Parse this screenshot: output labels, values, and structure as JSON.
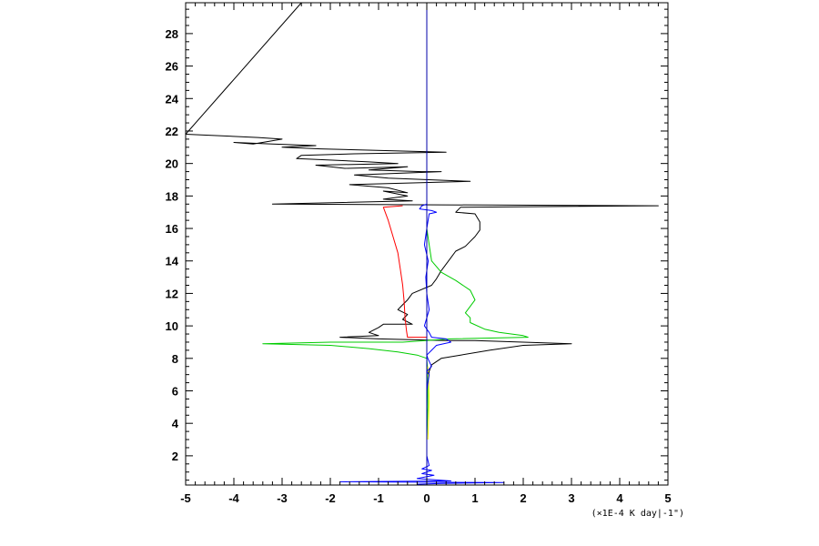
{
  "chart_data": {
    "type": "line",
    "title": "",
    "xlabel": "(×1E-4 K day|-1\")",
    "ylabel": "",
    "xlim": [
      -5,
      5
    ],
    "ylim": [
      0.2,
      29.9
    ],
    "x_ticks": [
      "-5",
      "-4",
      "-3",
      "-2",
      "-1",
      "0",
      "1",
      "2",
      "3",
      "4",
      "5"
    ],
    "y_ticks": [
      "2",
      "4",
      "6",
      "8",
      "10",
      "12",
      "14",
      "16",
      "18",
      "20",
      "22",
      "24",
      "26",
      "28"
    ],
    "grid": false,
    "legend": "none",
    "series": [
      {
        "color": "#000000",
        "points": [
          [
            -5.0,
            29.9
          ],
          [
            -2.6,
            29.9
          ],
          [
            -5.0,
            21.8
          ],
          [
            -3.5,
            21.6
          ],
          [
            -3.0,
            21.5
          ],
          [
            -3.6,
            21.2
          ],
          [
            -4.0,
            21.3
          ],
          [
            -3.2,
            21.2
          ],
          [
            -2.3,
            21.1
          ],
          [
            -3.0,
            21.0
          ],
          [
            -2.2,
            20.9
          ],
          [
            0.4,
            20.7
          ],
          [
            -1.5,
            20.6
          ],
          [
            -2.6,
            20.5
          ],
          [
            -2.7,
            20.3
          ],
          [
            -1.9,
            20.2
          ],
          [
            -1.2,
            20.1
          ],
          [
            -0.6,
            20.0
          ],
          [
            -2.3,
            19.9
          ],
          [
            -1.7,
            19.7
          ],
          [
            -0.4,
            19.8
          ],
          [
            -1.2,
            19.6
          ],
          [
            -0.1,
            19.5
          ],
          [
            0.3,
            19.5
          ],
          [
            -1.5,
            19.3
          ],
          [
            -0.8,
            19.1
          ],
          [
            0.9,
            18.9
          ],
          [
            -1.6,
            18.7
          ],
          [
            -0.8,
            18.5
          ],
          [
            -0.4,
            18.2
          ],
          [
            -0.9,
            18.3
          ],
          [
            -0.4,
            18.0
          ],
          [
            -0.9,
            17.8
          ],
          [
            -0.3,
            17.7
          ],
          [
            -3.2,
            17.5
          ],
          [
            4.8,
            17.4
          ],
          [
            0.7,
            17.3
          ],
          [
            0.6,
            17.0
          ],
          [
            1.0,
            16.9
          ],
          [
            1.1,
            16.4
          ],
          [
            1.1,
            15.9
          ],
          [
            1.0,
            15.5
          ],
          [
            0.9,
            15.2
          ],
          [
            0.8,
            14.9
          ],
          [
            0.6,
            14.6
          ],
          [
            0.5,
            14.2
          ],
          [
            0.4,
            13.8
          ],
          [
            0.3,
            13.4
          ],
          [
            0.2,
            12.9
          ],
          [
            0.1,
            12.5
          ],
          [
            -0.3,
            12.0
          ],
          [
            -0.4,
            11.6
          ],
          [
            -0.5,
            11.3
          ],
          [
            -0.6,
            11.0
          ],
          [
            -0.4,
            10.7
          ],
          [
            -0.5,
            10.4
          ],
          [
            -0.3,
            10.1
          ],
          [
            -0.9,
            10.1
          ],
          [
            -1.0,
            9.9
          ],
          [
            -1.2,
            9.6
          ],
          [
            -1.0,
            9.4
          ],
          [
            -1.8,
            9.3
          ],
          [
            -1.0,
            9.2
          ],
          [
            0.4,
            9.1
          ],
          [
            1.0,
            9.1
          ],
          [
            2.0,
            9.0
          ],
          [
            3.0,
            8.9
          ],
          [
            2.0,
            8.8
          ],
          [
            1.3,
            8.5
          ],
          [
            0.7,
            8.2
          ],
          [
            0.3,
            8.0
          ],
          [
            0.1,
            7.6
          ],
          [
            0.05,
            7.2
          ],
          [
            0.02,
            6.5
          ],
          [
            0.0,
            5.0
          ],
          [
            0.0,
            2.0
          ],
          [
            0.0,
            0.2
          ]
        ]
      },
      {
        "color": "#ff0000",
        "points": [
          [
            -0.5,
            17.4
          ],
          [
            -0.9,
            17.3
          ],
          [
            -0.8,
            16.5
          ],
          [
            -0.7,
            15.5
          ],
          [
            -0.6,
            14.5
          ],
          [
            -0.55,
            13.5
          ],
          [
            -0.5,
            12.5
          ],
          [
            -0.47,
            11.5
          ],
          [
            -0.45,
            10.5
          ],
          [
            -0.42,
            9.7
          ],
          [
            -0.4,
            9.3
          ],
          [
            0.0,
            9.3
          ]
        ]
      },
      {
        "color": "#00cc00",
        "points": [
          [
            0.0,
            16.0
          ],
          [
            0.05,
            15.0
          ],
          [
            0.1,
            14.0
          ],
          [
            0.3,
            13.3
          ],
          [
            0.6,
            12.8
          ],
          [
            0.9,
            12.2
          ],
          [
            1.0,
            11.6
          ],
          [
            0.9,
            11.2
          ],
          [
            0.8,
            10.8
          ],
          [
            0.9,
            10.5
          ],
          [
            0.9,
            10.2
          ],
          [
            1.2,
            9.8
          ],
          [
            1.5,
            9.6
          ],
          [
            2.0,
            9.4
          ],
          [
            2.1,
            9.3
          ],
          [
            0.5,
            9.2
          ],
          [
            -0.5,
            9.0
          ],
          [
            -2.0,
            9.0
          ],
          [
            -3.4,
            8.9
          ],
          [
            -2.0,
            8.8
          ],
          [
            -1.2,
            8.6
          ],
          [
            -0.6,
            8.4
          ],
          [
            -0.2,
            8.2
          ],
          [
            0.0,
            8.0
          ],
          [
            0.02,
            7.0
          ],
          [
            0.02,
            5.0
          ],
          [
            0.0,
            3.0
          ]
        ]
      },
      {
        "color": "#ffff00",
        "points": [
          [
            0.02,
            7.5
          ],
          [
            0.04,
            6.5
          ],
          [
            0.05,
            5.5
          ],
          [
            0.04,
            4.5
          ],
          [
            0.03,
            3.5
          ],
          [
            0.02,
            3.0
          ]
        ]
      },
      {
        "color": "#0000ff",
        "points": [
          [
            0.0,
            17.5
          ],
          [
            -0.1,
            17.4
          ],
          [
            -0.15,
            17.2
          ],
          [
            0.1,
            17.1
          ],
          [
            0.2,
            17.0
          ],
          [
            0.05,
            16.9
          ],
          [
            0.0,
            16.0
          ],
          [
            -0.05,
            15.0
          ],
          [
            0.03,
            14.0
          ],
          [
            -0.02,
            13.0
          ],
          [
            0.0,
            12.0
          ],
          [
            0.05,
            11.0
          ],
          [
            -0.05,
            10.0
          ],
          [
            0.05,
            9.6
          ],
          [
            0.1,
            9.3
          ],
          [
            0.4,
            9.2
          ],
          [
            0.5,
            9.0
          ],
          [
            0.2,
            8.8
          ],
          [
            0.1,
            8.5
          ],
          [
            0.0,
            8.2
          ],
          [
            0.02,
            8.0
          ],
          [
            0.1,
            7.5
          ],
          [
            0.0,
            7.2
          ],
          [
            0.05,
            7.0
          ],
          [
            0.0,
            6.0
          ],
          [
            0.0,
            4.0
          ],
          [
            0.0,
            2.0
          ],
          [
            0.05,
            1.4
          ],
          [
            -0.1,
            1.2
          ],
          [
            0.1,
            1.1
          ],
          [
            -0.1,
            0.9
          ],
          [
            0.15,
            0.8
          ],
          [
            -0.2,
            0.6
          ],
          [
            0.5,
            0.45
          ],
          [
            -1.8,
            0.4
          ],
          [
            1.6,
            0.35
          ],
          [
            0.3,
            0.3
          ],
          [
            -0.2,
            0.25
          ],
          [
            0.0,
            0.2
          ]
        ]
      }
    ],
    "zero_line": {
      "color": "#0000aa",
      "x": 0
    }
  }
}
